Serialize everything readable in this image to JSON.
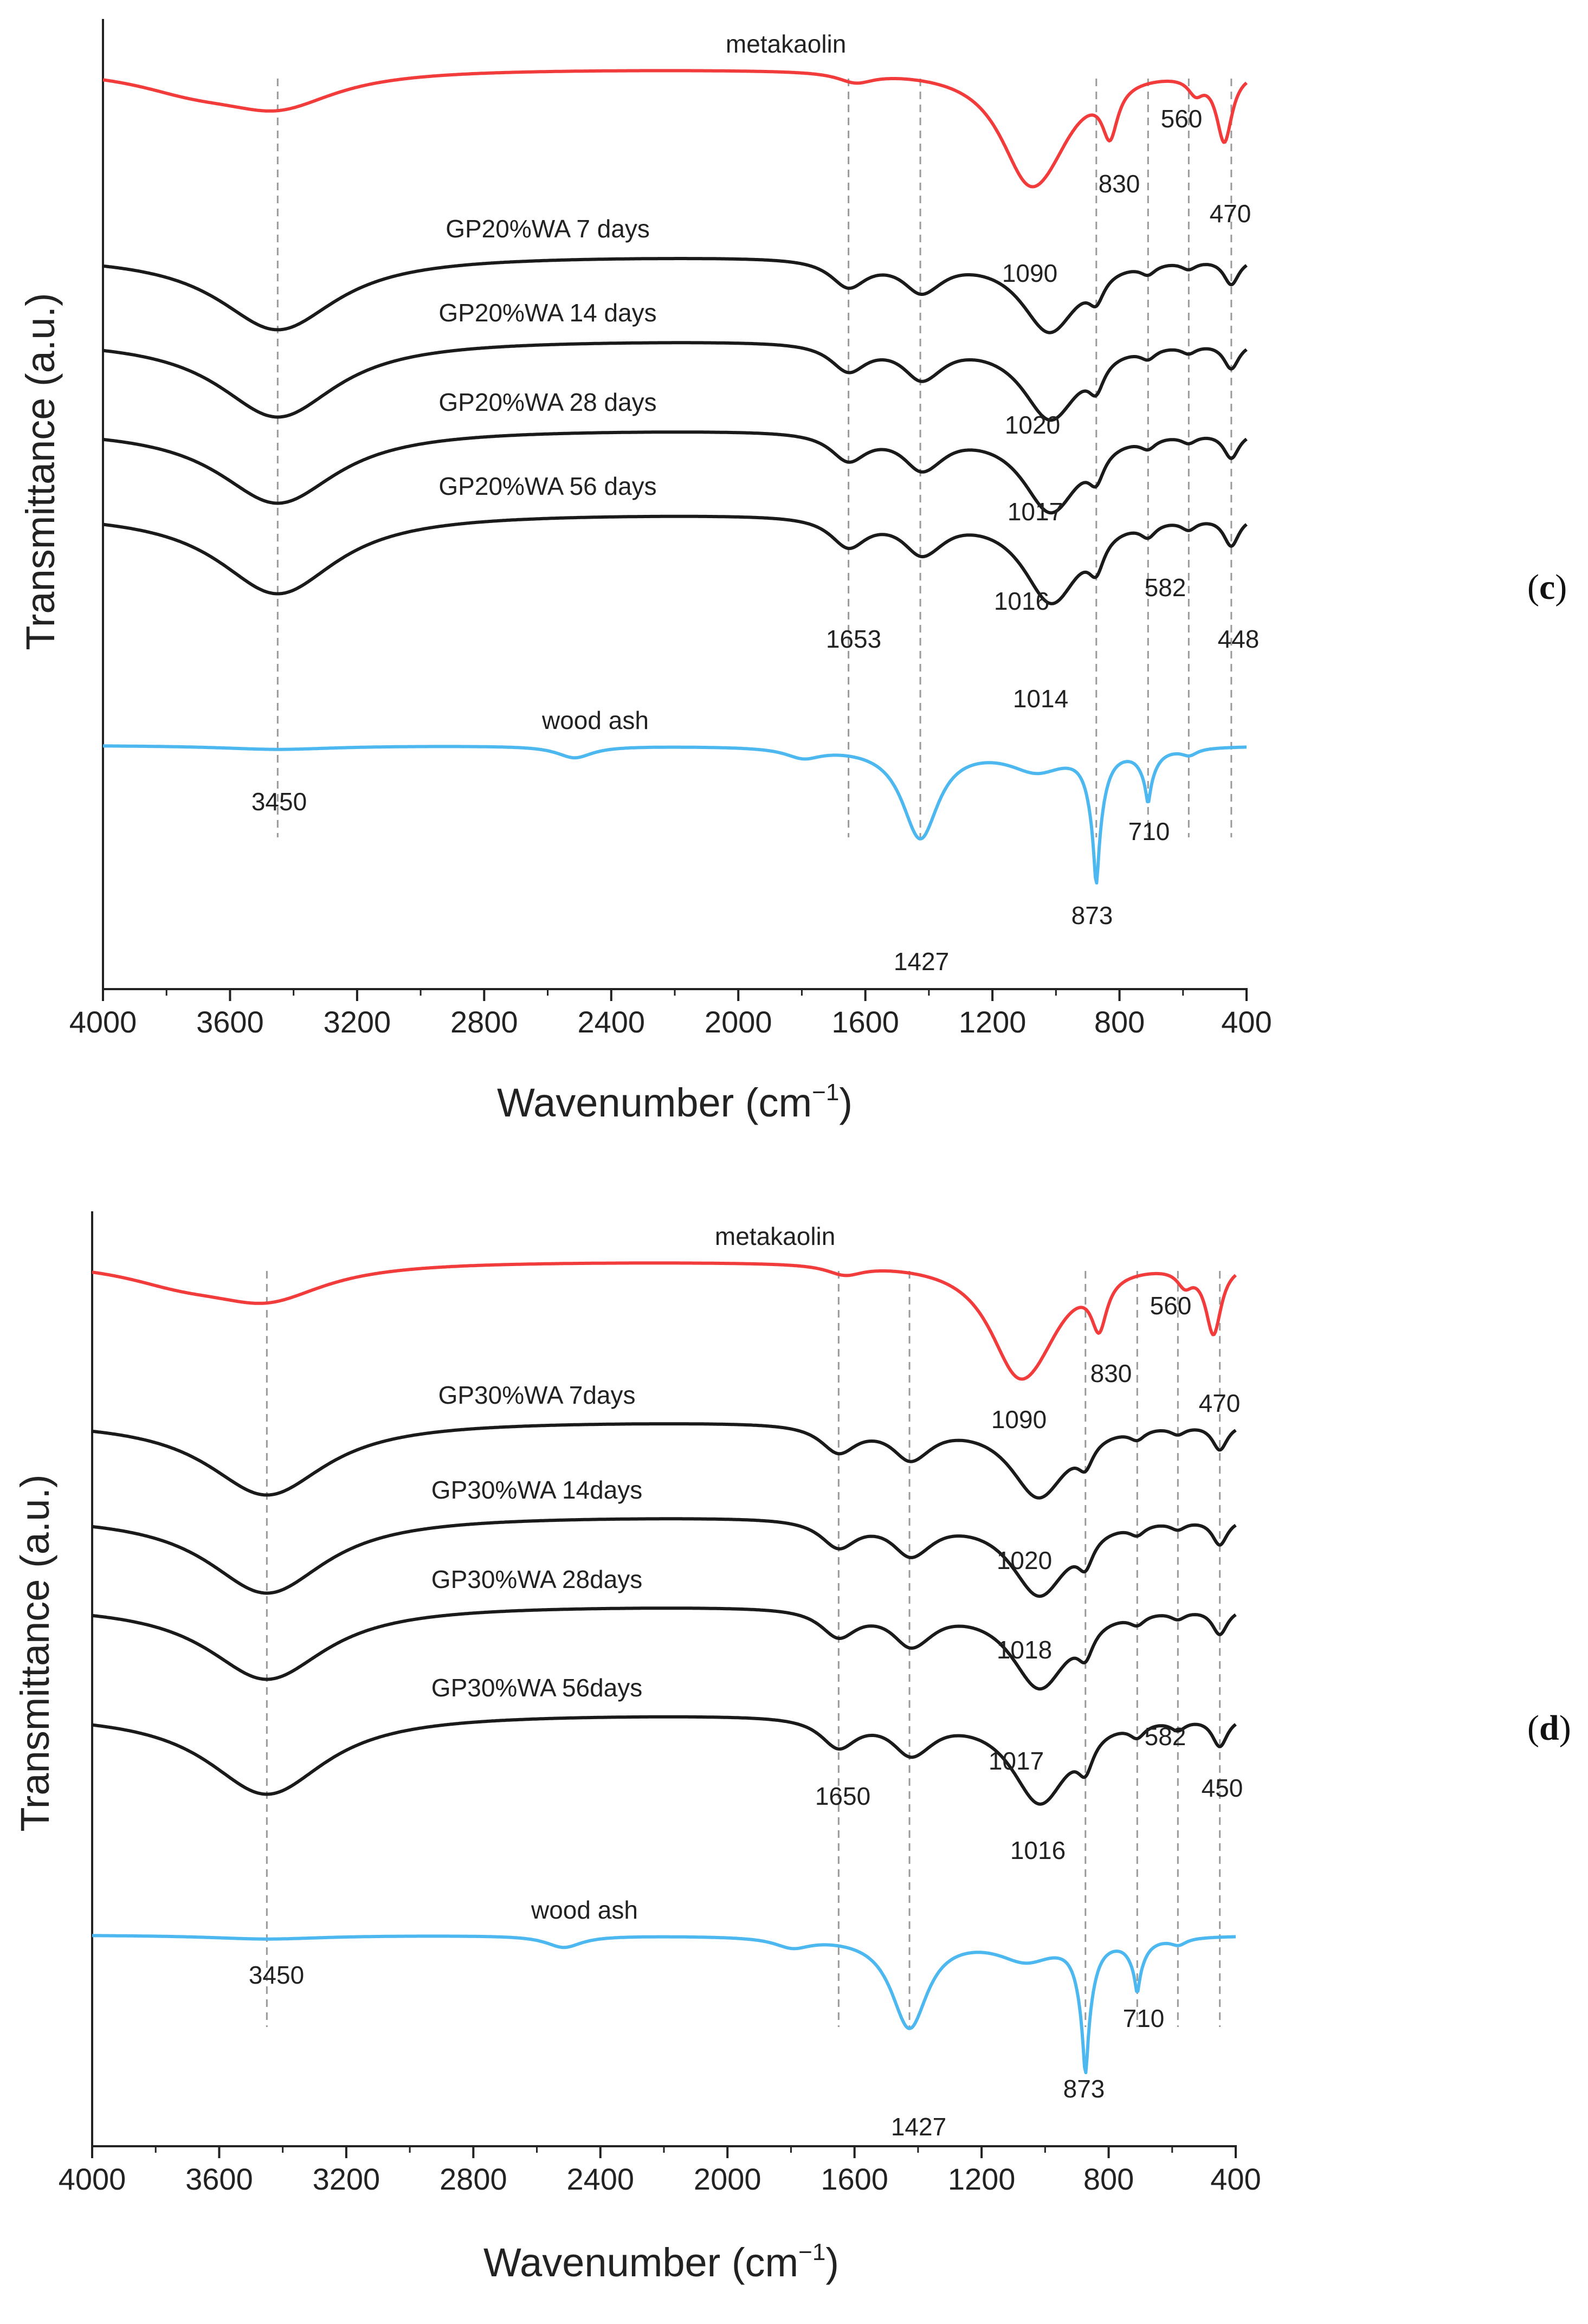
{
  "figure": {
    "panel_c_label": "c",
    "panel_d_label": "d",
    "paren_open": "(",
    "paren_close": ")"
  },
  "colors": {
    "metakaolin": "#f23b3b",
    "geopolymer": "#1a1a1a",
    "wood_ash": "#4db8f0",
    "guide": "#9a9a9a",
    "axis": "#222222"
  },
  "chart_data": [
    {
      "panel": "c",
      "type": "line",
      "xlabel": "Wavenumber (cm",
      "xlabel_sup": "−1",
      "xlabel_close": ")",
      "ylabel": "Transmittance (a.u.)",
      "xlim": [
        4000,
        400
      ],
      "xticks": [
        4000,
        3600,
        3200,
        2800,
        2400,
        2000,
        1600,
        1200,
        800,
        400
      ],
      "series": [
        {
          "name": "metakaolin",
          "color": "metakaolin",
          "label_x": 1850,
          "peaks": [
            [
              3450,
              0.55
            ],
            [
              3720,
              0.25
            ],
            [
              1630,
              0.15
            ],
            [
              1090,
              1.35
            ],
            [
              1020,
              0.6
            ],
            [
              830,
              0.75
            ],
            [
              560,
              0.25
            ],
            [
              470,
              1.05
            ]
          ],
          "rise": [
            [
              900,
              1.1,
              0.05
            ]
          ]
        },
        {
          "name": "GP20%WA 7 days",
          "color": "geopolymer",
          "label_x": 2600,
          "peaks": [
            [
              3450,
              1.15
            ],
            [
              1653,
              0.42
            ],
            [
              1427,
              0.42
            ],
            [
              1380,
              0.08
            ],
            [
              1020,
              1.15
            ],
            [
              873,
              0.35
            ],
            [
              710,
              0.15
            ],
            [
              582,
              0.12
            ],
            [
              448,
              0.4
            ]
          ]
        },
        {
          "name": "GP20%WA 14 days",
          "color": "geopolymer",
          "label_x": 2600,
          "peaks": [
            [
              3450,
              1.2
            ],
            [
              1653,
              0.42
            ],
            [
              1427,
              0.45
            ],
            [
              1380,
              0.1
            ],
            [
              1017,
              1.2
            ],
            [
              873,
              0.4
            ],
            [
              710,
              0.15
            ],
            [
              582,
              0.12
            ],
            [
              448,
              0.4
            ]
          ]
        },
        {
          "name": "GP20%WA 28 days",
          "color": "geopolymer",
          "label_x": 2600,
          "peaks": [
            [
              3450,
              1.15
            ],
            [
              1653,
              0.42
            ],
            [
              1427,
              0.45
            ],
            [
              1380,
              0.12
            ],
            [
              1016,
              1.25
            ],
            [
              873,
              0.4
            ],
            [
              710,
              0.15
            ],
            [
              582,
              0.12
            ],
            [
              448,
              0.4
            ]
          ]
        },
        {
          "name": "GP20%WA 56 days",
          "color": "geopolymer",
          "label_x": 2600,
          "peaks": [
            [
              3450,
              1.25
            ],
            [
              1653,
              0.45
            ],
            [
              1427,
              0.45
            ],
            [
              1380,
              0.12
            ],
            [
              1014,
              1.35
            ],
            [
              873,
              0.45
            ],
            [
              710,
              0.2
            ],
            [
              582,
              0.15
            ],
            [
              448,
              0.45
            ]
          ]
        },
        {
          "name": "wood ash",
          "color": "wood_ash",
          "label_x": 2450,
          "peaks": [
            [
              3450,
              0.06
            ],
            [
              2515,
              0.18
            ],
            [
              1795,
              0.15
            ],
            [
              1427,
              1.4
            ],
            [
              1060,
              0.35
            ],
            [
              873,
              1.1
            ],
            [
              710,
              0.45
            ],
            [
              580,
              0.1
            ]
          ]
        }
      ],
      "peak_labels": [
        {
          "text": "560",
          "x": 560
        },
        {
          "text": "830",
          "x": 830
        },
        {
          "text": "470",
          "x": 470
        },
        {
          "text": "1090",
          "x": 1090
        },
        {
          "text": "1020",
          "x": 1020
        },
        {
          "text": "1017",
          "x": 1017
        },
        {
          "text": "1016",
          "x": 1016
        },
        {
          "text": "1014",
          "x": 1014
        },
        {
          "text": "582",
          "x": 582
        },
        {
          "text": "448",
          "x": 448
        },
        {
          "text": "1653",
          "x": 1653
        },
        {
          "text": "3450",
          "x": 3450
        },
        {
          "text": "1427",
          "x": 1427
        },
        {
          "text": "873",
          "x": 873
        },
        {
          "text": "710",
          "x": 710
        }
      ],
      "guide_lines": [
        3450,
        1653,
        1427,
        873,
        710,
        582,
        448
      ]
    },
    {
      "panel": "d",
      "type": "line",
      "xlabel": "Wavenumber (cm",
      "xlabel_sup": "−1",
      "xlabel_close": ")",
      "ylabel": "Transmittance (a.u.)",
      "xlim": [
        4000,
        400
      ],
      "xticks": [
        4000,
        3600,
        3200,
        2800,
        2400,
        2000,
        1600,
        1200,
        800,
        400
      ],
      "series": [
        {
          "name": "metakaolin",
          "color": "metakaolin",
          "label_x": 1850,
          "peaks": [
            [
              3450,
              0.55
            ],
            [
              3720,
              0.25
            ],
            [
              1630,
              0.15
            ],
            [
              1090,
              1.35
            ],
            [
              1020,
              0.6
            ],
            [
              830,
              0.75
            ],
            [
              560,
              0.25
            ],
            [
              470,
              1.05
            ]
          ],
          "rise": [
            [
              900,
              1.1,
              0.05
            ]
          ]
        },
        {
          "name": "GP30%WA 7days",
          "color": "geopolymer",
          "label_x": 2600,
          "peaks": [
            [
              3450,
              1.15
            ],
            [
              1650,
              0.42
            ],
            [
              1427,
              0.45
            ],
            [
              1380,
              0.08
            ],
            [
              1020,
              1.15
            ],
            [
              873,
              0.35
            ],
            [
              710,
              0.15
            ],
            [
              582,
              0.12
            ],
            [
              450,
              0.4
            ]
          ]
        },
        {
          "name": "GP30%WA 14days",
          "color": "geopolymer",
          "label_x": 2600,
          "peaks": [
            [
              3450,
              1.2
            ],
            [
              1650,
              0.42
            ],
            [
              1427,
              0.45
            ],
            [
              1380,
              0.1
            ],
            [
              1018,
              1.2
            ],
            [
              873,
              0.4
            ],
            [
              710,
              0.15
            ],
            [
              582,
              0.12
            ],
            [
              450,
              0.4
            ]
          ]
        },
        {
          "name": "GP30%WA 28days",
          "color": "geopolymer",
          "label_x": 2600,
          "peaks": [
            [
              3450,
              1.15
            ],
            [
              1650,
              0.42
            ],
            [
              1427,
              0.45
            ],
            [
              1380,
              0.12
            ],
            [
              1017,
              1.25
            ],
            [
              873,
              0.4
            ],
            [
              710,
              0.15
            ],
            [
              582,
              0.12
            ],
            [
              450,
              0.4
            ]
          ]
        },
        {
          "name": "GP30%WA 56days",
          "color": "geopolymer",
          "label_x": 2600,
          "peaks": [
            [
              3450,
              1.25
            ],
            [
              1650,
              0.45
            ],
            [
              1427,
              0.45
            ],
            [
              1380,
              0.12
            ],
            [
              1016,
              1.35
            ],
            [
              873,
              0.45
            ],
            [
              710,
              0.2
            ],
            [
              582,
              0.15
            ],
            [
              450,
              0.45
            ]
          ]
        },
        {
          "name": "wood ash",
          "color": "wood_ash",
          "label_x": 2450,
          "peaks": [
            [
              3450,
              0.06
            ],
            [
              2515,
              0.18
            ],
            [
              1795,
              0.15
            ],
            [
              1427,
              1.4
            ],
            [
              1060,
              0.35
            ],
            [
              873,
              1.1
            ],
            [
              710,
              0.45
            ],
            [
              580,
              0.1
            ]
          ]
        }
      ],
      "peak_labels": [
        {
          "text": "560",
          "x": 560
        },
        {
          "text": "830",
          "x": 830
        },
        {
          "text": "470",
          "x": 470
        },
        {
          "text": "1090",
          "x": 1090
        },
        {
          "text": "1020",
          "x": 1020
        },
        {
          "text": "1018",
          "x": 1018
        },
        {
          "text": "1017",
          "x": 1017
        },
        {
          "text": "1016",
          "x": 1016
        },
        {
          "text": "582",
          "x": 582
        },
        {
          "text": "450",
          "x": 450
        },
        {
          "text": "1650",
          "x": 1650
        },
        {
          "text": "3450",
          "x": 3450
        },
        {
          "text": "1427",
          "x": 1427
        },
        {
          "text": "873",
          "x": 873
        },
        {
          "text": "710",
          "x": 710
        }
      ],
      "guide_lines": [
        3450,
        1650,
        1427,
        873,
        710,
        582,
        450
      ]
    }
  ]
}
